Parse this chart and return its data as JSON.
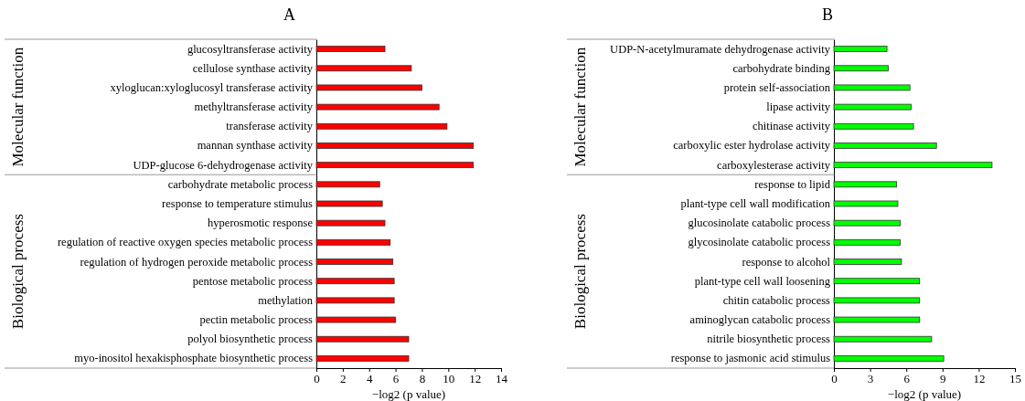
{
  "chart_data": [
    {
      "type": "bar",
      "orientation": "horizontal",
      "title": "A",
      "ylabel": "Molecular function",
      "categories": [
        "glucosyltransferase activity",
        "cellulose synthase activity",
        "xyloglucan:xyloglucosyl transferase activity",
        "methyltransferase activity",
        "transferase activity",
        "mannan synthase activity",
        "UDP-glucose 6-dehydrogenase activity"
      ],
      "values": [
        5.2,
        7.2,
        8.0,
        9.3,
        9.9,
        11.9,
        11.9
      ],
      "color": "#ff0000",
      "xlim": [
        0,
        14
      ],
      "tick_labels": "y"
    },
    {
      "type": "bar",
      "orientation": "horizontal",
      "ylabel": "Biological process",
      "xlabel": "−log2 (p value)",
      "categories": [
        "carbohydrate metabolic process",
        "response to temperature stimulus",
        "hyperosmotic response",
        "regulation of reactive oxygen species metabolic process",
        "regulation of hydrogen peroxide metabolic process",
        "pentose metabolic process",
        "methylation",
        "pectin metabolic process",
        "polyol biosynthetic process",
        "myo-inositol hexakisphosphate biosynthetic process"
      ],
      "values": [
        4.8,
        5.0,
        5.2,
        5.6,
        5.8,
        5.9,
        5.9,
        6.0,
        7.0,
        7.0
      ],
      "color": "#ff0000",
      "xlim": [
        0,
        14
      ],
      "xticks": [
        0,
        2,
        4,
        6,
        8,
        10,
        12,
        14
      ]
    },
    {
      "type": "bar",
      "orientation": "horizontal",
      "title": "B",
      "ylabel": "Molecular function",
      "categories": [
        "UDP-N-acetylmuramate dehydrogenase activity",
        "carbohydrate binding",
        "protein self-association",
        "lipase activity",
        "chitinase activity",
        "carboxylic ester hydrolase activity",
        "carboxylesterase activity"
      ],
      "values": [
        4.4,
        4.5,
        6.3,
        6.4,
        6.6,
        8.5,
        13.1
      ],
      "color": "#00ff00",
      "xlim": [
        0,
        15
      ],
      "tick_labels": "y"
    },
    {
      "type": "bar",
      "orientation": "horizontal",
      "ylabel": "Biological process",
      "xlabel": "−log2 (p value)",
      "categories": [
        "response to lipid",
        "plant-type cell wall modification",
        "glucosinolate catabolic process",
        "glycosinolate catabolic process",
        "response to alcohol",
        "plant-type cell wall loosening",
        "chitin catabolic process",
        "aminoglycan catabolic process",
        "nitrile biosynthetic process",
        "response to jasmonic acid stimulus"
      ],
      "values": [
        5.2,
        5.3,
        5.5,
        5.5,
        5.6,
        7.1,
        7.1,
        7.1,
        8.1,
        9.1
      ],
      "color": "#00ff00",
      "xlim": [
        0,
        15
      ],
      "xticks": [
        0,
        3,
        6,
        9,
        12,
        15
      ]
    }
  ]
}
